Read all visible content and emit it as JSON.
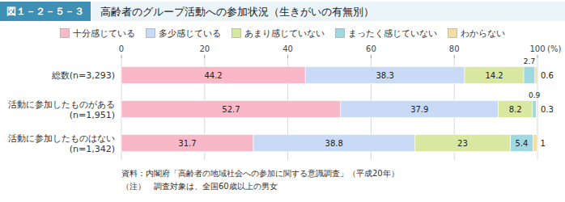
{
  "chart_data": {
    "type": "bar",
    "orientation": "horizontal",
    "stacked": true,
    "title": "高齢者のグループ活動への参加状況（生きがいの有無別）",
    "annotations": [
      "図１－２－５－３",
      "資料：内閣府「高齢者の地域社会への参加に関する意識調査」（平成20年）",
      "（注）　調査対象は、全国60歳以上の男女"
    ],
    "xlabel": "(%)",
    "categories": [
      "総数(n=3,293)",
      "活動に参加したものがある\n(n=1,951)",
      "活動に参加したものはない\n(n=1,342)"
    ],
    "series": [
      {
        "name": "十分感じている",
        "color": "#f9b8c8",
        "values": [
          44.2,
          52.7,
          31.7
        ]
      },
      {
        "name": "多少感じている",
        "color": "#c8daf5",
        "values": [
          38.3,
          37.9,
          38.8
        ]
      },
      {
        "name": "あまり感じていない",
        "color": "#d8e8a0",
        "values": [
          14.2,
          8.2,
          23.0
        ]
      },
      {
        "name": "まったく感じていない",
        "color": "#a0d8e0",
        "values": [
          2.7,
          0.9,
          5.4
        ]
      },
      {
        "name": "わからない",
        "color": "#f5dfa0",
        "values": [
          0.6,
          0.3,
          1.0
        ]
      }
    ],
    "xlim": [
      0,
      100
    ],
    "xticks": [
      0,
      20,
      40,
      60,
      80,
      100
    ],
    "grid": true,
    "legend": "top",
    "data_labels": true
  }
}
